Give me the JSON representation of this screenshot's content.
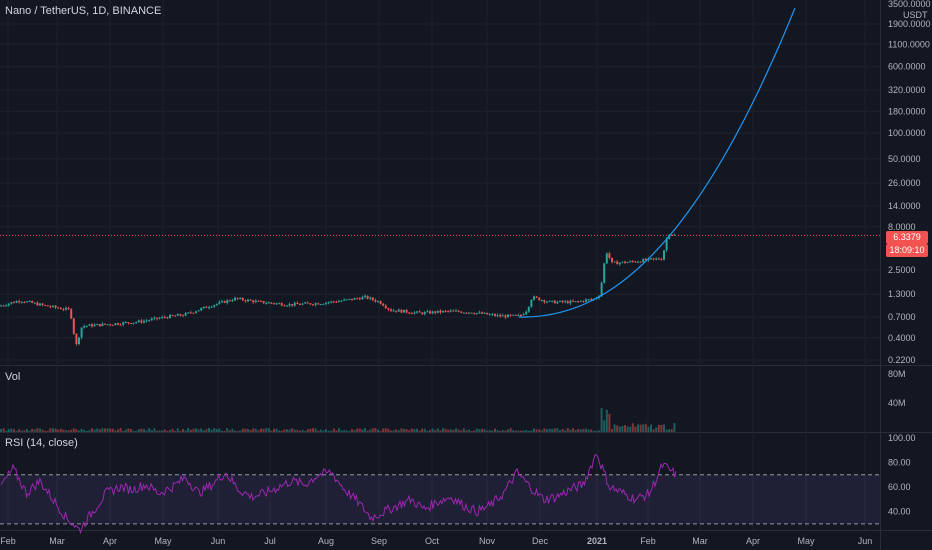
{
  "header": {
    "title": "Nano / TetherUS, 1D, BINANCE",
    "volume_label": "Vol",
    "rsi_label": "RSI (14, close)"
  },
  "price_axis": {
    "top_partial": "3500.0000",
    "currency": "USDT",
    "ticks": [
      "1900.0000",
      "1100.0000",
      "600.0000",
      "320.0000",
      "180.0000",
      "100.0000",
      "50.0000",
      "26.0000",
      "14.0000",
      "8.0000",
      "2.5000",
      "1.3000",
      "0.7000",
      "0.4000",
      "0.2200"
    ]
  },
  "price_badge": "6.3379",
  "time_badge": "18:09:10",
  "volume_axis": {
    "ticks": [
      "80M",
      "40M"
    ]
  },
  "rsi_axis": {
    "ticks": [
      "100.00",
      "80.00",
      "60.00",
      "40.00"
    ],
    "bands": [
      70,
      30
    ]
  },
  "time_axis": {
    "labels": [
      "Feb",
      "Mar",
      "Apr",
      "May",
      "Jun",
      "Jul",
      "Aug",
      "Sep",
      "Oct",
      "Nov",
      "Dec",
      "2021",
      "Feb",
      "Mar",
      "Apr",
      "May",
      "Jun"
    ]
  },
  "colors": {
    "background": "#131722",
    "up": "#26a69a",
    "down": "#ef5350",
    "curve": "#2196f3",
    "rsi": "#9c27b0",
    "grid": "#1e222d",
    "text": "#b2b5be"
  },
  "chart_data": {
    "type": "candlestick",
    "symbol": "Nano / TetherUS",
    "interval": "1D",
    "exchange": "BINANCE",
    "yscale": "log",
    "ylim": [
      0.2,
      3500
    ],
    "series": [
      {
        "name": "price",
        "points": [
          [
            "Feb",
            0.95
          ],
          [
            "Feb",
            1.05
          ],
          [
            "Feb",
            1.1
          ],
          [
            "Feb",
            0.98
          ],
          [
            "Mar",
            0.9
          ],
          [
            "Mar",
            0.82
          ],
          [
            "Mar",
            0.35
          ],
          [
            "Mar",
            0.5
          ],
          [
            "Apr",
            0.55
          ],
          [
            "Apr",
            0.6
          ],
          [
            "Apr",
            0.62
          ],
          [
            "Apr",
            0.6
          ],
          [
            "May",
            0.7
          ],
          [
            "May",
            0.68
          ],
          [
            "May",
            0.75
          ],
          [
            "May",
            0.8
          ],
          [
            "Jun",
            0.95
          ],
          [
            "Jun",
            1.15
          ],
          [
            "Jun",
            1.05
          ],
          [
            "Jun",
            1.0
          ],
          [
            "Jul",
            0.95
          ],
          [
            "Jul",
            1.0
          ],
          [
            "Jul",
            0.98
          ],
          [
            "Jul",
            0.95
          ],
          [
            "Aug",
            1.0
          ],
          [
            "Aug",
            1.1
          ],
          [
            "Aug",
            1.2
          ],
          [
            "Aug",
            1.15
          ],
          [
            "Sep",
            0.85
          ],
          [
            "Sep",
            0.8
          ],
          [
            "Sep",
            0.78
          ],
          [
            "Sep",
            0.75
          ],
          [
            "Oct",
            0.8
          ],
          [
            "Oct",
            0.82
          ],
          [
            "Oct",
            0.85
          ],
          [
            "Oct",
            0.8
          ],
          [
            "Nov",
            0.78
          ],
          [
            "Nov",
            0.72
          ],
          [
            "Nov",
            0.7
          ],
          [
            "Nov",
            0.8
          ],
          [
            "Dec",
            1.3
          ],
          [
            "Dec",
            1.2
          ],
          [
            "Dec",
            1.1
          ],
          [
            "Dec",
            1.15
          ],
          [
            "2021",
            1.2
          ],
          [
            "2021",
            3.5
          ],
          [
            "2021",
            3.0
          ],
          [
            "2021",
            3.2
          ],
          [
            "Feb",
            3.2
          ],
          [
            "Feb",
            3.4
          ],
          [
            "Feb",
            6.5
          ],
          [
            "Feb",
            6.3
          ]
        ]
      },
      {
        "name": "RSI (14, close)",
        "values": [
          60,
          75,
          55,
          65,
          50,
          35,
          25,
          40,
          55,
          60,
          58,
          62,
          55,
          60,
          68,
          55,
          62,
          72,
          58,
          52,
          55,
          60,
          65,
          62,
          70,
          72,
          58,
          48,
          35,
          40,
          45,
          50,
          42,
          48,
          52,
          45,
          40,
          45,
          55,
          72,
          60,
          50,
          52,
          58,
          62,
          88,
          60,
          55,
          50,
          55,
          78,
          70
        ]
      }
    ],
    "curve": {
      "type": "parabolic",
      "from": [
        "Nov",
        0.7
      ],
      "to": [
        "Apr",
        3500
      ]
    }
  }
}
